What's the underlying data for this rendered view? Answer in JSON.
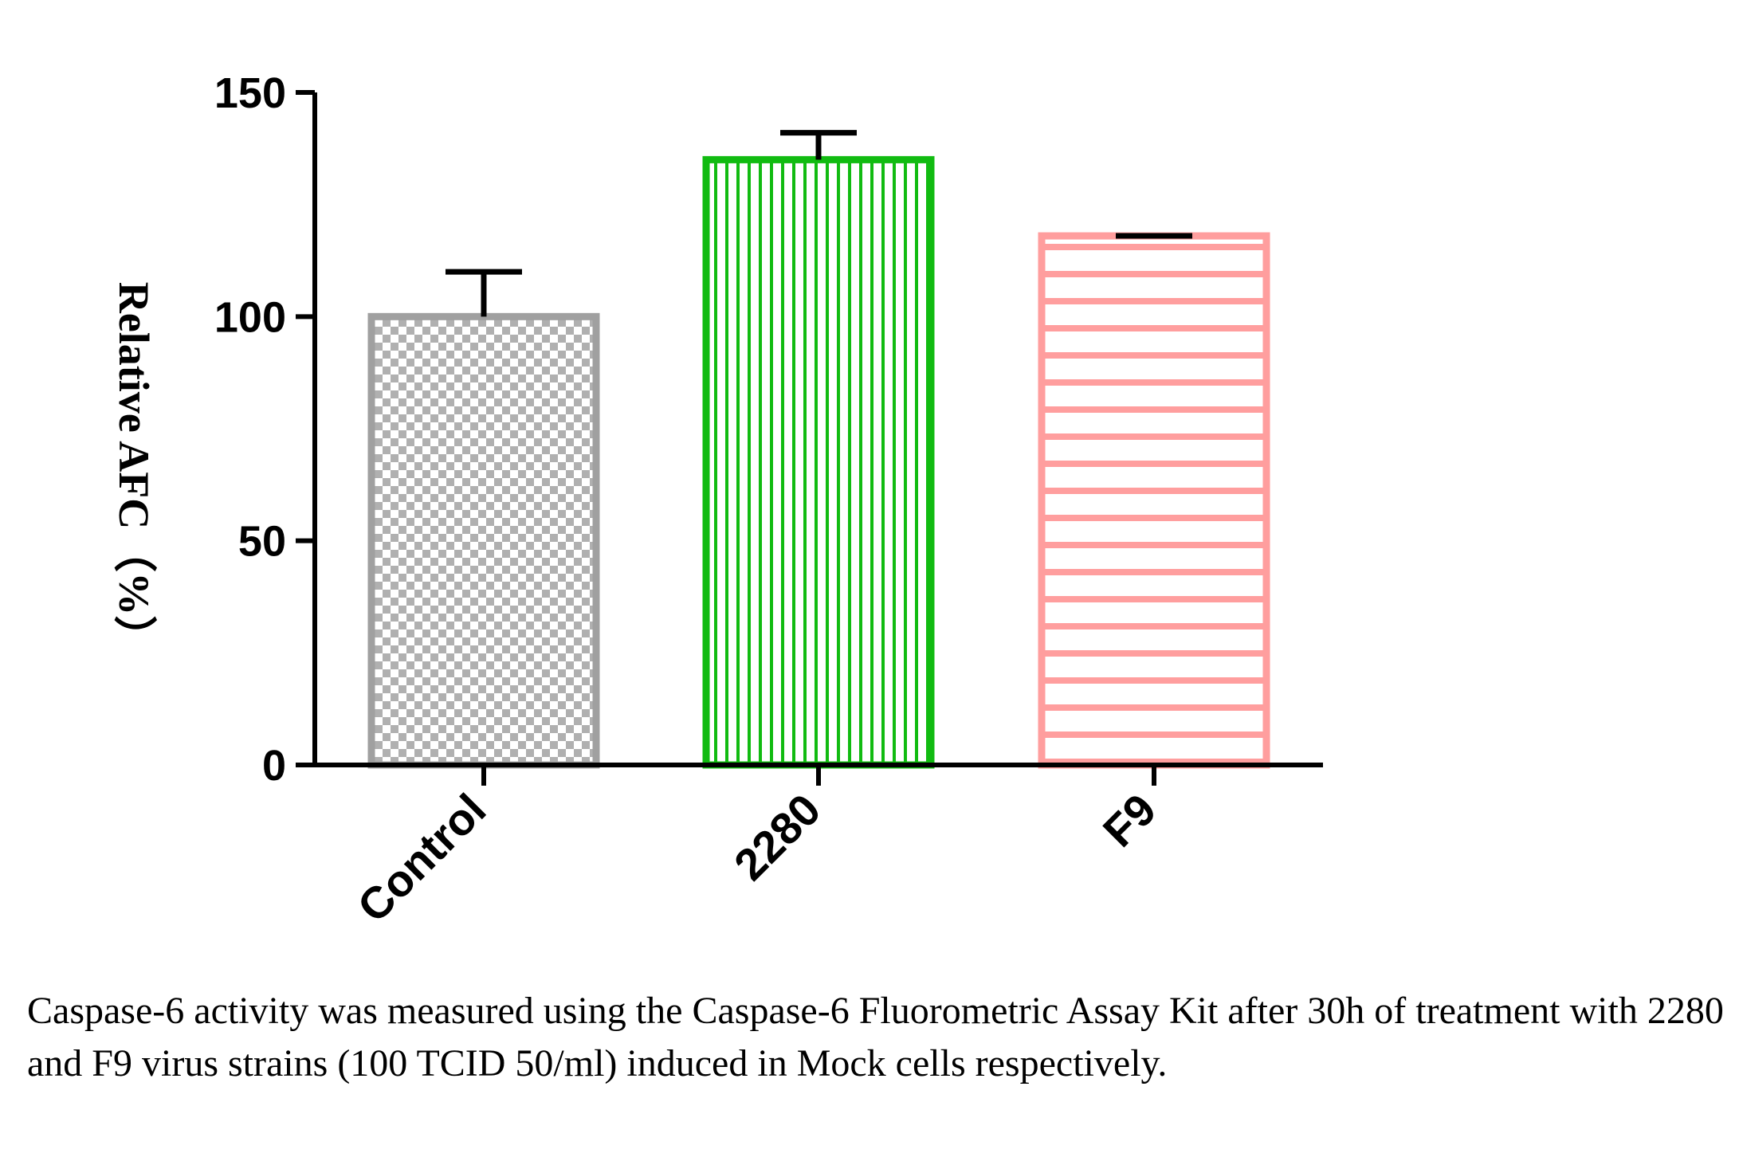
{
  "chart_data": {
    "type": "bar",
    "title": "",
    "xlabel": "",
    "ylabel": "Relative AFC（%）",
    "ylim": [
      0,
      150
    ],
    "yticks": [
      0,
      50,
      100,
      150
    ],
    "grid": false,
    "categories": [
      "Control",
      "2280",
      "F9"
    ],
    "values": [
      100,
      135,
      118
    ],
    "errors": [
      10,
      6,
      0
    ],
    "styles": [
      {
        "color": "#a0a0a0",
        "pattern": "checker"
      },
      {
        "color": "#11bb11",
        "pattern": "vertical-lines"
      },
      {
        "color": "#ff9e9e",
        "pattern": "horizontal-lines"
      }
    ]
  },
  "caption": "Caspase-6 activity was measured using the Caspase-6 Fluorometric Assay Kit after 30h of treatment with 2280 and F9 virus strains (100 TCID 50/ml) induced in Mock cells respectively."
}
